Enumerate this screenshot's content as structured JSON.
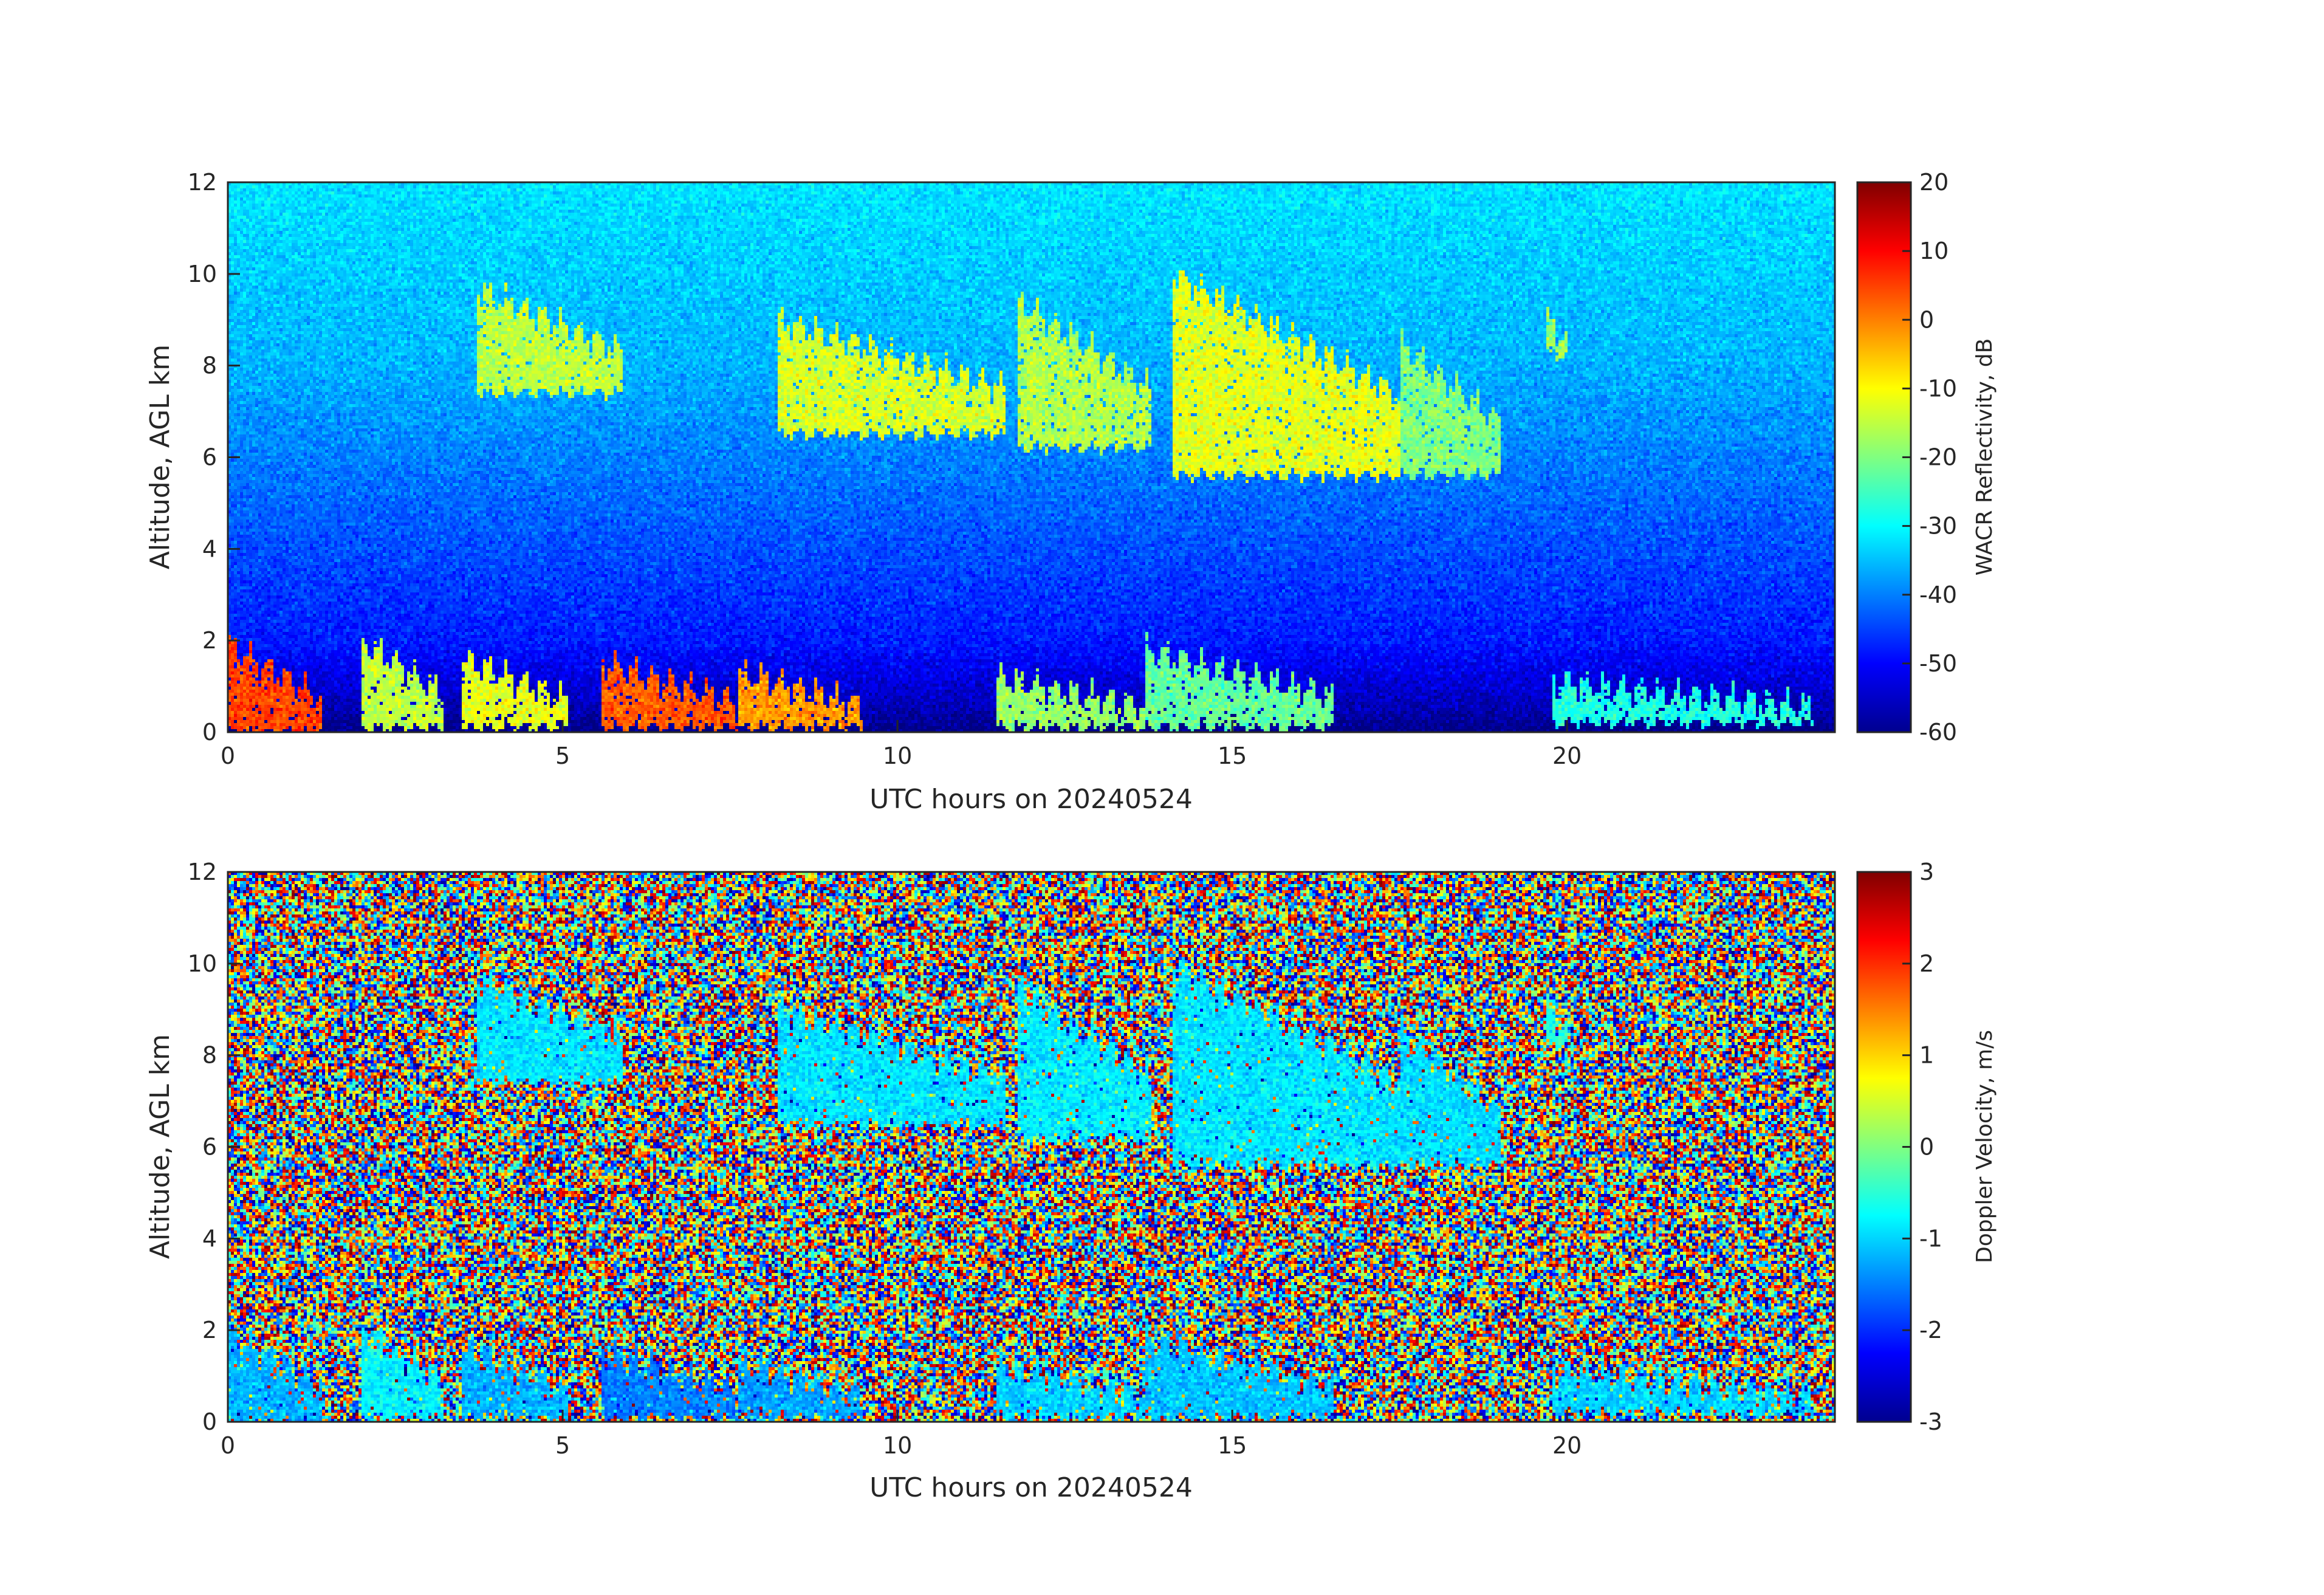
{
  "chart_data": [
    {
      "type": "heatmap",
      "title": "",
      "xlabel": "UTC hours on 20240524",
      "ylabel": "Altitude, AGL km",
      "xlim": [
        0,
        24
      ],
      "ylim": [
        0,
        12
      ],
      "x_ticks": [
        "0",
        "5",
        "10",
        "15",
        "20"
      ],
      "y_ticks": [
        "0",
        "2",
        "4",
        "6",
        "8",
        "10",
        "12"
      ],
      "colorbar": {
        "label": "WACR Reflectivity, dB",
        "range": [
          -60,
          20
        ],
        "ticks": [
          "20",
          "10",
          "0",
          "-10",
          "-20",
          "-30",
          "-40",
          "-50",
          "-60"
        ],
        "colormap": "jet"
      },
      "background_gradient_dB": [
        {
          "alt_km": 12,
          "dB": -32
        },
        {
          "alt_km": 8,
          "dB": -36
        },
        {
          "alt_km": 4,
          "dB": -44
        },
        {
          "alt_km": 2,
          "dB": -48
        },
        {
          "alt_km": 0.5,
          "dB": -56
        },
        {
          "alt_km": 0,
          "dB": -60
        }
      ],
      "features": [
        {
          "name": "cirrus band 1",
          "t_start": 3.7,
          "t_end": 5.9,
          "base_km": 7.4,
          "top_km": 9.7,
          "dB": -15
        },
        {
          "name": "cirrus band 2",
          "t_start": 8.2,
          "t_end": 11.6,
          "base_km": 6.5,
          "top_km": 9.0,
          "dB": -13
        },
        {
          "name": "cirrus band 3",
          "t_start": 11.8,
          "t_end": 13.8,
          "base_km": 6.2,
          "top_km": 9.4,
          "dB": -16
        },
        {
          "name": "cirrus band 4",
          "t_start": 14.1,
          "t_end": 17.5,
          "base_km": 5.6,
          "top_km": 10.0,
          "dB": -12
        },
        {
          "name": "cirrus band 5",
          "t_start": 17.5,
          "t_end": 19.0,
          "base_km": 5.6,
          "top_km": 8.5,
          "dB": -20
        },
        {
          "name": "cirrus patch",
          "t_start": 19.7,
          "t_end": 20.0,
          "base_km": 8.2,
          "top_km": 9.0,
          "dB": -18
        },
        {
          "name": "boundary layer cloud",
          "t_start": 0.0,
          "t_end": 1.4,
          "base_km": 0.0,
          "top_km": 1.9,
          "dB": 5
        },
        {
          "name": "boundary layer cloud",
          "t_start": 2.0,
          "t_end": 3.2,
          "base_km": 0.1,
          "top_km": 2.0,
          "dB": -15
        },
        {
          "name": "boundary layer cloud",
          "t_start": 3.5,
          "t_end": 5.1,
          "base_km": 0.1,
          "top_km": 1.6,
          "dB": -12
        },
        {
          "name": "boundary layer cloud",
          "t_start": 5.6,
          "t_end": 7.6,
          "base_km": 0.1,
          "top_km": 1.5,
          "dB": 3
        },
        {
          "name": "boundary layer cloud",
          "t_start": 7.6,
          "t_end": 9.5,
          "base_km": 0.1,
          "top_km": 1.3,
          "dB": -2
        },
        {
          "name": "boundary layer cloud",
          "t_start": 11.5,
          "t_end": 13.7,
          "base_km": 0.1,
          "top_km": 1.2,
          "dB": -18
        },
        {
          "name": "boundary layer cloud",
          "t_start": 13.7,
          "t_end": 16.5,
          "base_km": 0.1,
          "top_km": 1.8,
          "dB": -22
        },
        {
          "name": "boundary layer cloud",
          "t_start": 19.8,
          "t_end": 23.7,
          "base_km": 0.2,
          "top_km": 1.1,
          "dB": -28
        }
      ]
    },
    {
      "type": "heatmap",
      "title": "",
      "xlabel": "UTC hours on 20240524",
      "ylabel": "Altitude, AGL km",
      "xlim": [
        0,
        24
      ],
      "ylim": [
        0,
        12
      ],
      "x_ticks": [
        "0",
        "5",
        "10",
        "15",
        "20"
      ],
      "y_ticks": [
        "0",
        "2",
        "4",
        "6",
        "8",
        "10",
        "12"
      ],
      "colorbar": {
        "label": "Doppler Velocity, m/s",
        "range": [
          -3,
          3
        ],
        "ticks": [
          "3",
          "2",
          "1",
          "0",
          "-1",
          "-2",
          "-3"
        ],
        "colormap": "jet"
      },
      "background": "random noise spanning -3 to 3 m/s",
      "features": [
        {
          "name": "cirrus band 1",
          "t_start": 3.7,
          "t_end": 5.9,
          "base_km": 7.4,
          "top_km": 9.7,
          "velocity": -0.9
        },
        {
          "name": "cirrus band 2",
          "t_start": 8.2,
          "t_end": 11.6,
          "base_km": 6.5,
          "top_km": 9.0,
          "velocity": -0.9
        },
        {
          "name": "cirrus band 3",
          "t_start": 11.8,
          "t_end": 13.8,
          "base_km": 6.2,
          "top_km": 9.4,
          "velocity": -0.85
        },
        {
          "name": "cirrus band 4",
          "t_start": 14.1,
          "t_end": 17.5,
          "base_km": 5.6,
          "top_km": 10.0,
          "velocity": -0.9
        },
        {
          "name": "cirrus band 5",
          "t_start": 17.5,
          "t_end": 19.0,
          "base_km": 5.6,
          "top_km": 8.5,
          "velocity": -0.95
        },
        {
          "name": "cirrus patch",
          "t_start": 19.7,
          "t_end": 20.0,
          "base_km": 8.2,
          "top_km": 9.0,
          "velocity": -0.6
        },
        {
          "name": "boundary layer cloud",
          "t_start": 0.0,
          "t_end": 1.4,
          "base_km": 0.0,
          "top_km": 1.9,
          "velocity": -1.2
        },
        {
          "name": "boundary layer cloud",
          "t_start": 2.0,
          "t_end": 3.2,
          "base_km": 0.1,
          "top_km": 2.0,
          "velocity": -0.8
        },
        {
          "name": "boundary layer cloud",
          "t_start": 3.5,
          "t_end": 5.1,
          "base_km": 0.1,
          "top_km": 1.6,
          "velocity": -1.2
        },
        {
          "name": "boundary layer cloud",
          "t_start": 5.6,
          "t_end": 7.6,
          "base_km": 0.1,
          "top_km": 1.5,
          "velocity": -1.5
        },
        {
          "name": "boundary layer cloud",
          "t_start": 7.6,
          "t_end": 9.5,
          "base_km": 0.1,
          "top_km": 1.3,
          "velocity": -1.3
        },
        {
          "name": "boundary layer cloud",
          "t_start": 11.5,
          "t_end": 13.7,
          "base_km": 0.1,
          "top_km": 1.2,
          "velocity": -1.0
        },
        {
          "name": "boundary layer cloud",
          "t_start": 13.7,
          "t_end": 16.5,
          "base_km": 0.1,
          "top_km": 1.8,
          "velocity": -1.1
        },
        {
          "name": "boundary layer cloud",
          "t_start": 19.8,
          "t_end": 23.7,
          "base_km": 0.2,
          "top_km": 1.1,
          "velocity": -1.0
        }
      ]
    }
  ]
}
